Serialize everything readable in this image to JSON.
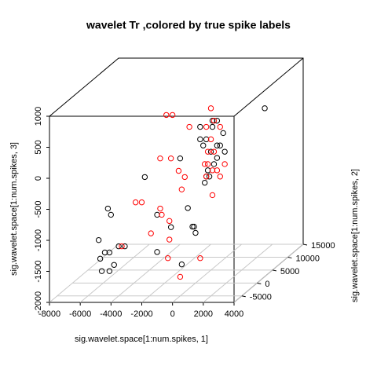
{
  "chart_data": {
    "type": "scatter3d",
    "title": "wavelet Tr ,colored by true spike labels",
    "xlabel": "sig.wavelet.space[1:num.spikes, 1]",
    "ylabel": "sig.wavelet.space[1:num.spikes, 2]",
    "zlabel": "sig.wavelet.space[1:num.spikes, 3]",
    "xlim": [
      -8000,
      4000
    ],
    "xticks": [
      -8000,
      -6000,
      -4000,
      -2000,
      0,
      2000,
      4000
    ],
    "ylim": [
      -7500,
      15000
    ],
    "yticks": [
      -5000,
      0,
      5000,
      10000,
      15000
    ],
    "zlim": [
      -2000,
      1000
    ],
    "zticks": [
      -2000,
      -1500,
      -1000,
      -500,
      0,
      500,
      1000
    ],
    "grid": true,
    "series": [
      {
        "color": "#000000",
        "x": [
          2500,
          -1700,
          -900,
          -200,
          -1300,
          -600,
          -1500,
          -1000,
          -400,
          -100,
          -800,
          -1200,
          -1400,
          -1300,
          -900,
          -600,
          -600,
          -1100,
          -1700,
          -2000,
          -4300,
          -1500,
          -1000,
          -1100,
          -1200,
          -2500,
          -5700,
          -5500,
          -1600,
          -2500,
          -900,
          -5300,
          -4000,
          -3600,
          -4600,
          -4900,
          -5200,
          -4300,
          -4600,
          -5100
        ],
        "y": [
          10000,
          10000,
          10000,
          10000,
          10000,
          10000,
          10000,
          10000,
          10000,
          10000,
          10000,
          10000,
          10000,
          10000,
          10000,
          10000,
          10000,
          10000,
          10000,
          5000,
          5000,
          5000,
          5000,
          5000,
          5000,
          0,
          0,
          0,
          0,
          0,
          0,
          -5000,
          -5000,
          -5000,
          -5000,
          -5000,
          -5000,
          -5000,
          -5000,
          -5000
        ],
        "z": [
          400,
          100,
          200,
          0,
          -100,
          -200,
          -200,
          -300,
          -200,
          -300,
          -500,
          -600,
          -800,
          -700,
          100,
          200,
          -400,
          -700,
          -100,
          -200,
          -500,
          -1000,
          -1400,
          -1300,
          -1300,
          -900,
          -800,
          -900,
          -1100,
          -1500,
          -1700,
          -1100,
          -1200,
          -1200,
          -1300,
          -1300,
          -1400,
          -1500,
          -1600,
          -1600
        ]
      },
      {
        "color": "#ff0000",
        "x": [
          -1000,
          -800,
          -1300,
          -400,
          -1000,
          -1200,
          -100,
          -600,
          -1200,
          -900,
          -1300,
          -400,
          -800,
          -1400,
          -900,
          -2400,
          -2900,
          -2500,
          -3300,
          -2600,
          -2100,
          -1700,
          -1900,
          -3900,
          -3500,
          -2200,
          -2300,
          -1700,
          -2900,
          -1700,
          -1800,
          300,
          -1000,
          -3800
        ],
        "y": [
          10000,
          10000,
          10000,
          10000,
          10000,
          10000,
          10000,
          10000,
          10000,
          10000,
          10000,
          10000,
          10000,
          10000,
          10000,
          10000,
          5000,
          5000,
          5000,
          5000,
          5000,
          5000,
          5000,
          0,
          0,
          0,
          0,
          0,
          0,
          0,
          0,
          0,
          0,
          -5000
        ],
        "z": [
          400,
          200,
          100,
          100,
          -100,
          -300,
          -500,
          -600,
          -500,
          -600,
          -700,
          -700,
          -300,
          -500,
          -1000,
          100,
          500,
          500,
          -200,
          -200,
          -400,
          -500,
          -700,
          -700,
          -700,
          -900,
          -800,
          -1000,
          -1200,
          -1300,
          -1600,
          -1600,
          -1900,
          -1200
        ]
      }
    ]
  }
}
